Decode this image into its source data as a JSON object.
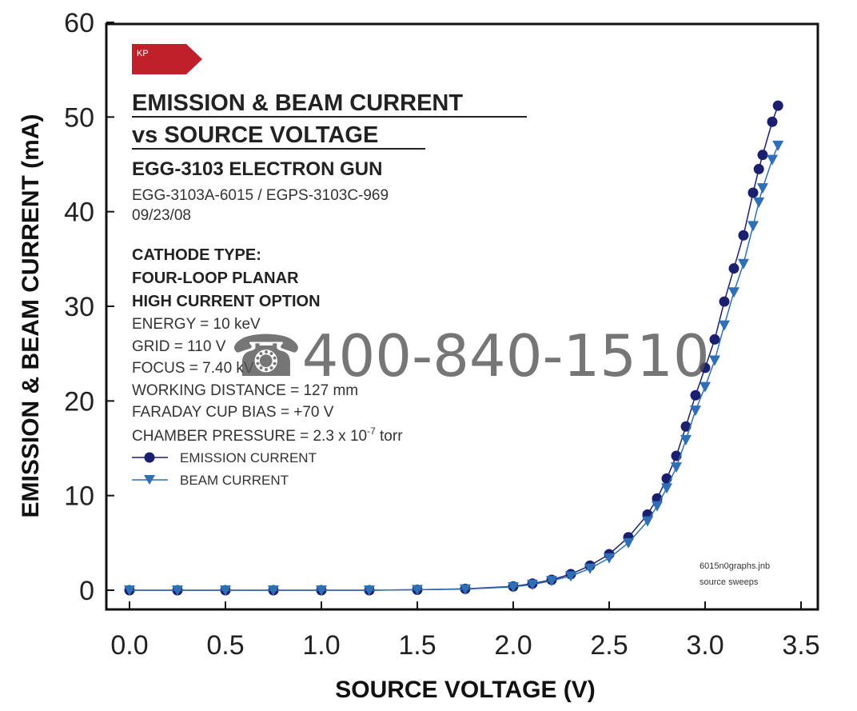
{
  "chart_data": {
    "type": "scatter",
    "xlabel": "SOURCE VOLTAGE (V)",
    "ylabel": "EMISSION & BEAM CURRENT (mA)",
    "xlim": [
      -0.1,
      3.5
    ],
    "ylim": [
      -1.5,
      60
    ],
    "xticks": [
      "0.0",
      "0.5",
      "1.0",
      "1.5",
      "2.0",
      "2.5",
      "3.0",
      "3.5"
    ],
    "yticks": [
      "0",
      "10",
      "20",
      "30",
      "40",
      "50",
      "60"
    ],
    "grid": false,
    "legend_position": "top-left",
    "series": [
      {
        "name": "EMISSION CURRENT",
        "marker": "circle",
        "color": "#1a1f6e",
        "x": [
          0.0,
          0.25,
          0.5,
          0.75,
          1.0,
          1.25,
          1.5,
          1.75,
          2.0,
          2.1,
          2.2,
          2.3,
          2.4,
          2.5,
          2.6,
          2.7,
          2.75,
          2.8,
          2.85,
          2.9,
          2.95,
          3.0,
          3.05,
          3.1,
          3.15,
          3.2,
          3.25,
          3.28,
          3.3,
          3.35,
          3.38
        ],
        "y": [
          0.0,
          0.0,
          0.0,
          0.0,
          0.0,
          0.0,
          0.05,
          0.15,
          0.4,
          0.7,
          1.1,
          1.7,
          2.6,
          3.8,
          5.6,
          8.0,
          9.7,
          11.8,
          14.2,
          17.3,
          20.6,
          23.5,
          26.5,
          30.5,
          34.0,
          37.5,
          42.0,
          44.5,
          46.0,
          49.5,
          51.2
        ]
      },
      {
        "name": "BEAM CURRENT",
        "marker": "triangle-down",
        "color": "#2f6fb5",
        "x": [
          0.0,
          0.25,
          0.5,
          0.75,
          1.0,
          1.25,
          1.5,
          1.75,
          2.0,
          2.1,
          2.2,
          2.3,
          2.4,
          2.5,
          2.6,
          2.7,
          2.75,
          2.8,
          2.85,
          2.9,
          2.95,
          3.0,
          3.05,
          3.1,
          3.15,
          3.2,
          3.25,
          3.28,
          3.3,
          3.35,
          3.38
        ],
        "y": [
          0.0,
          0.0,
          0.0,
          0.0,
          0.0,
          0.0,
          0.05,
          0.12,
          0.35,
          0.6,
          1.0,
          1.5,
          2.3,
          3.4,
          5.0,
          7.3,
          8.9,
          10.8,
          13.0,
          15.9,
          19.0,
          21.5,
          24.3,
          28.0,
          31.5,
          34.5,
          38.5,
          41.0,
          42.5,
          45.5,
          47.0
        ]
      }
    ]
  },
  "annotations": {
    "badge": "KP",
    "title_line1": "EMISSION & BEAM CURRENT",
    "title_line2": "vs SOURCE VOLTAGE",
    "subtitle": "EGG-3103 ELECTRON GUN",
    "model": "EGG-3103A-6015 / EGPS-3103C-969",
    "date": "09/23/08",
    "cathode_label": "CATHODE TYPE:",
    "cathode_line1": "FOUR-LOOP PLANAR",
    "cathode_line2": "HIGH CURRENT OPTION",
    "params": [
      "ENERGY = 10 keV",
      "GRID = 110 V",
      "FOCUS = 7.40 kV",
      "WORKING DISTANCE = 127 mm",
      "FARADAY CUP BIAS = +70 V"
    ],
    "pressure_prefix": "CHAMBER PRESSURE = 2.3 x 10",
    "pressure_exp": "-7",
    "pressure_suffix": " torr",
    "file_line1": "6015n0graphs.jnb",
    "file_line2": "source sweeps",
    "watermark": "☎400-840-1510"
  },
  "colors": {
    "badge": "#c0202a",
    "emission": "#1a1f6e",
    "beam": "#2f6fb5"
  }
}
